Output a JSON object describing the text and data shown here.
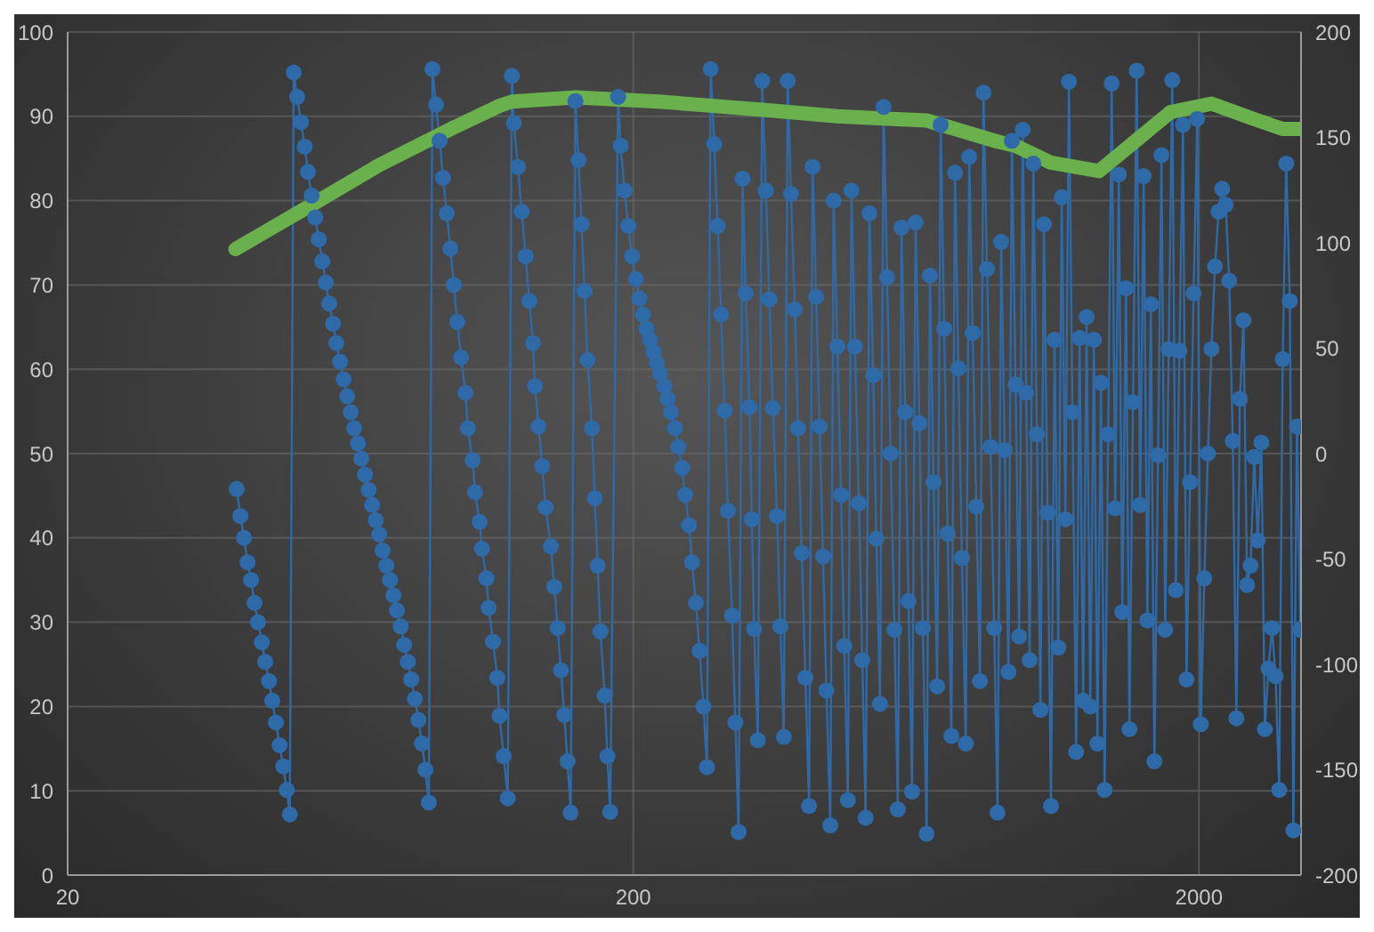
{
  "chart_data": {
    "type": "line",
    "log": "x",
    "grid": true,
    "xlim": [
      20,
      3030
    ],
    "xticks": [
      20,
      200,
      2000
    ],
    "ylim": [
      0,
      100
    ],
    "yticks": [
      0,
      10,
      20,
      30,
      40,
      50,
      60,
      70,
      80,
      90,
      100
    ],
    "y2lim": [
      -200,
      200
    ],
    "y2ticks": [
      -200,
      -150,
      -100,
      -50,
      0,
      50,
      100,
      150,
      200
    ],
    "series": [
      {
        "color": "#2f6aa8",
        "marker": "circle",
        "x": [
          39.8,
          40.4,
          41.0,
          41.6,
          42.2,
          42.8,
          43.4,
          44.1,
          44.7,
          45.4,
          46.0,
          46.7,
          47.4,
          48.1,
          48.8,
          49.4,
          50.2,
          50.9,
          51.7,
          52.5,
          53.2,
          54.0,
          54.8,
          55.6,
          56.4,
          57.2,
          58.0,
          58.9,
          59.7,
          60.6,
          61.5,
          62.4,
          63.3,
          64.2,
          65.2,
          66.1,
          67.1,
          68.1,
          69.1,
          70.1,
          71.1,
          72.1,
          73.2,
          74.3,
          75.3,
          76.4,
          77.6,
          78.7,
          79.9,
          81.0,
          82.2,
          83.4,
          84.6,
          85.8,
          87.0,
          88.3,
          89.6,
          90.9,
          92.2,
          93.6,
          95.0,
          96.3,
          97.7,
          99.2,
          101,
          102,
          104,
          105,
          107,
          108,
          110,
          111,
          113,
          115,
          116,
          118,
          120,
          122,
          123,
          125,
          127,
          129,
          131,
          133,
          134,
          136,
          138,
          140,
          143,
          145,
          147,
          149,
          151,
          153,
          155,
          158,
          160,
          162,
          164,
          166,
          169,
          171,
          173,
          175,
          178,
          180,
          182,
          188,
          190,
          193,
          196,
          199,
          202,
          205,
          208,
          211,
          214,
          217,
          220,
          223,
          227,
          230,
          233,
          237,
          240,
          244,
          247,
          251,
          254,
          258,
          262,
          266,
          270,
          274,
          278,
          282,
          286,
          290,
          294,
          299,
          303,
          307,
          312,
          316,
          321,
          324,
          327,
          332,
          338,
          343,
          348,
          353,
          359,
          364,
          369,
          375,
          380,
          386,
          391,
          397,
          403,
          409,
          415,
          421,
          427,
          433,
          439,
          446,
          452,
          459,
          466,
          472,
          479,
          486,
          493,
          501,
          508,
          515,
          523,
          531,
          538,
          546,
          554,
          562,
          570,
          579,
          587,
          596,
          605,
          613,
          622,
          631,
          641,
          650,
          660,
          669,
          679,
          689,
          699,
          709,
          719,
          730,
          741,
          751,
          762,
          774,
          785,
          796,
          808,
          820,
          832,
          844,
          856,
          869,
          881,
          894,
          907,
          921,
          934,
          948,
          962,
          976,
          990,
          1004,
          1019,
          1034,
          1049,
          1064,
          1080,
          1095,
          1111,
          1128,
          1144,
          1161,
          1178,
          1195,
          1213,
          1230,
          1248,
          1266,
          1285,
          1304,
          1323,
          1342,
          1362,
          1382,
          1402,
          1422,
          1443,
          1464,
          1486,
          1507,
          1529,
          1552,
          1574,
          1597,
          1621,
          1644,
          1668,
          1693,
          1717,
          1743,
          1768,
          1794,
          1820,
          1847,
          1874,
          1901,
          1929,
          1957,
          1986,
          2015,
          2044,
          2074,
          2104,
          2135,
          2166,
          2198,
          2230,
          2262,
          2295,
          2329,
          2363,
          2397,
          2433,
          2468,
          2504,
          2541,
          2578,
          2615,
          2654,
          2692,
          2732,
          2772,
          2812,
          2853,
          2895,
          2937,
          2980,
          3023
        ],
        "values": [
          45.8,
          42.6,
          40.0,
          37.1,
          35.0,
          32.3,
          30.0,
          27.6,
          25.3,
          23.0,
          20.7,
          18.1,
          15.4,
          12.9,
          10.1,
          7.2,
          95.2,
          92.3,
          89.3,
          86.4,
          83.4,
          80.6,
          78.0,
          75.4,
          72.8,
          70.3,
          67.8,
          65.4,
          63.1,
          60.9,
          58.8,
          56.8,
          54.9,
          53.0,
          51.2,
          49.4,
          47.5,
          45.7,
          43.9,
          42.1,
          40.4,
          38.5,
          36.7,
          35.0,
          33.2,
          31.4,
          29.5,
          27.3,
          25.3,
          23.2,
          20.9,
          18.4,
          15.6,
          12.5,
          8.6,
          95.6,
          91.4,
          87.1,
          82.7,
          78.5,
          74.3,
          70.0,
          65.6,
          61.4,
          57.2,
          53.0,
          49.2,
          45.4,
          41.9,
          38.7,
          35.2,
          31.7,
          27.7,
          23.4,
          18.9,
          14.1,
          9.1,
          94.8,
          89.2,
          84.0,
          78.7,
          73.4,
          68.1,
          63.1,
          58.0,
          53.2,
          48.5,
          43.6,
          39.0,
          34.2,
          29.3,
          24.3,
          19.0,
          13.5,
          7.4,
          91.8,
          84.8,
          77.2,
          69.3,
          61.1,
          53.0,
          44.7,
          36.7,
          28.9,
          21.3,
          14.1,
          7.5,
          92.3,
          86.5,
          81.2,
          77.0,
          73.4,
          70.7,
          68.4,
          66.5,
          64.8,
          63.5,
          62.1,
          60.8,
          59.5,
          58.0,
          56.5,
          54.9,
          53.0,
          50.8,
          48.3,
          45.1,
          41.5,
          37.1,
          32.3,
          26.6,
          20.0,
          12.8,
          95.6,
          86.7,
          77.0,
          66.5,
          55.1,
          43.2,
          30.8,
          18.1,
          5.1,
          82.6,
          69.0,
          55.5,
          42.2,
          29.2,
          16.0,
          94.2,
          81.2,
          68.3,
          55.4,
          42.6,
          29.5,
          16.4,
          94.2,
          80.8,
          67.1,
          53.0,
          38.2,
          23.4,
          8.2,
          84.0,
          68.6,
          53.2,
          37.8,
          21.9,
          5.9,
          80.0,
          62.7,
          45.1,
          27.2,
          8.9,
          81.2,
          62.7,
          44.1,
          25.5,
          6.8,
          78.5,
          59.3,
          39.9,
          20.3,
          91.1,
          70.9,
          50.0,
          29.1,
          7.8,
          76.8,
          54.9,
          32.5,
          9.9,
          77.4,
          53.6,
          29.3,
          4.9,
          71.1,
          46.6,
          22.4,
          89.0,
          64.8,
          40.5,
          16.5,
          83.3,
          60.1,
          37.6,
          15.6,
          85.2,
          64.3,
          43.7,
          23.0,
          92.8,
          71.9,
          50.8,
          29.3,
          7.4,
          75.1,
          50.4,
          24.1,
          87.1,
          58.2,
          28.3,
          88.4,
          57.2,
          25.5,
          84.4,
          52.3,
          19.6,
          77.2,
          43.0,
          8.2,
          63.5,
          27.0,
          80.4,
          42.2,
          94.1,
          54.9,
          14.6,
          63.7,
          20.7,
          66.2,
          20.0,
          63.5,
          15.6,
          58.4,
          10.1,
          52.3,
          93.9,
          43.5,
          83.1,
          31.2,
          69.6,
          17.3,
          56.1,
          95.4,
          43.9,
          82.9,
          30.2,
          67.7,
          13.5,
          49.8,
          85.4,
          29.1,
          62.4,
          94.3,
          33.8,
          62.2,
          89.0,
          23.2,
          46.6,
          69.0,
          89.7,
          17.9,
          35.2,
          50.0,
          62.4,
          72.2,
          78.7,
          81.4,
          79.5,
          70.5,
          51.5,
          18.6,
          56.5,
          65.8,
          34.4,
          36.7,
          49.6,
          39.7,
          51.3,
          17.3,
          24.5,
          29.3,
          23.6,
          10.1,
          61.2,
          84.4,
          68.1,
          5.3,
          53.2,
          29.1
        ]
      },
      {
        "color": "#6ab04c",
        "marker": "none",
        "axis": "y2",
        "x": [
          39.6,
          53.2,
          71.2,
          95.1,
          116,
          122,
          158,
          222,
          343,
          459,
          660,
          881,
          948,
          1095,
          1332,
          1540,
          1781,
          2104,
          2486,
          2812,
          3023
        ],
        "values": [
          97,
          117,
          137,
          154,
          165,
          167,
          169,
          167,
          163,
          160,
          158,
          148,
          146,
          138,
          134,
          148,
          162,
          166,
          159,
          154,
          154
        ]
      }
    ]
  }
}
